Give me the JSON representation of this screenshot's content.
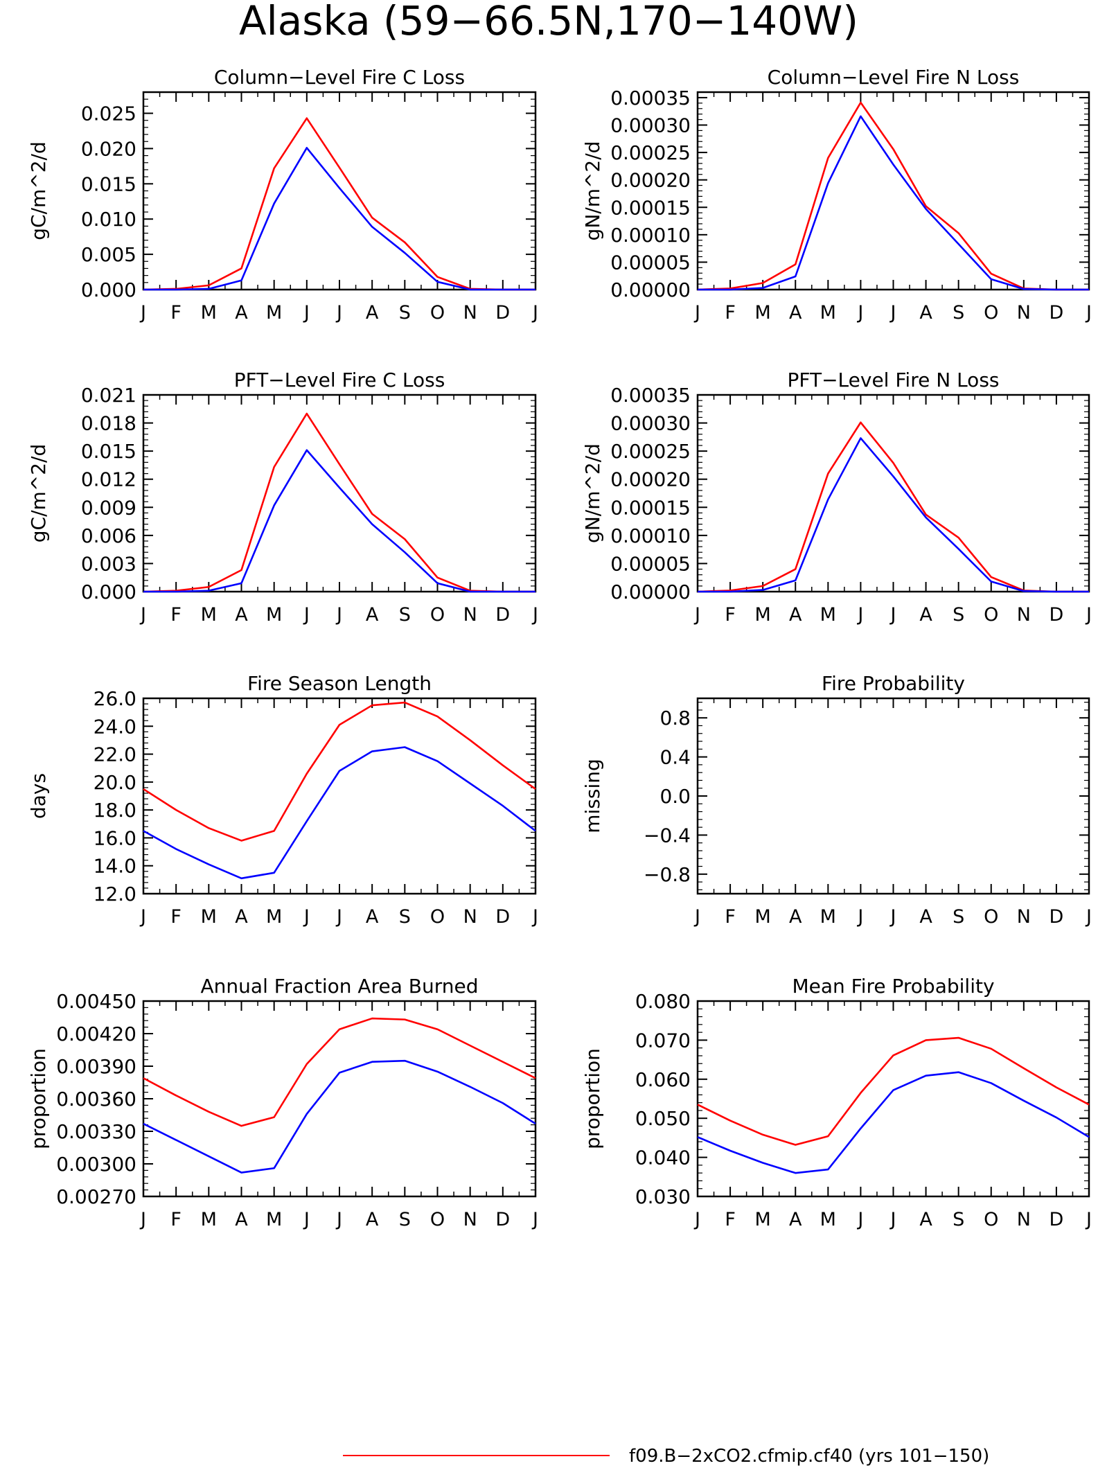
{
  "figure": {
    "title": "Alaska (59−66.5N,170−140W)",
    "legend": {
      "label": "f09.B−2xCO2.cfmip.cf40 (yrs 101−150)",
      "color": "#ff0000"
    }
  },
  "months": [
    "J",
    "F",
    "M",
    "A",
    "M",
    "J",
    "J",
    "A",
    "S",
    "O",
    "N",
    "D",
    "J"
  ],
  "colors": {
    "series_a": "#ff0000",
    "series_b": "#0000ff"
  },
  "chart_data": [
    {
      "id": "col-c",
      "type": "line",
      "title": "Column−Level Fire C Loss",
      "ylabel": "gC/m^2/d",
      "ylim": [
        0,
        0.028
      ],
      "yticks": [
        "0.000",
        "0.005",
        "0.010",
        "0.015",
        "0.020",
        "0.025"
      ],
      "ytick_values": [
        0,
        0.005,
        0.01,
        0.015,
        0.02,
        0.025
      ],
      "series": [
        {
          "color": "#ff0000",
          "values": [
            0.0,
            0.0001,
            0.0006,
            0.003,
            0.0172,
            0.0243,
            0.0173,
            0.0102,
            0.0067,
            0.0018,
            0.0001,
            0.0,
            0.0
          ]
        },
        {
          "color": "#0000ff",
          "values": [
            0.0,
            0.0,
            0.0001,
            0.0013,
            0.0122,
            0.0201,
            0.0144,
            0.0089,
            0.0052,
            0.0011,
            0.0,
            0.0,
            0.0
          ]
        }
      ]
    },
    {
      "id": "col-n",
      "type": "line",
      "title": "Column−Level Fire N Loss",
      "ylabel": "gN/m^2/d",
      "ylim": [
        0,
        0.00036
      ],
      "yticks": [
        "0.00000",
        "0.00005",
        "0.00010",
        "0.00015",
        "0.00020",
        "0.00025",
        "0.00030",
        "0.00035"
      ],
      "ytick_values": [
        0,
        5e-05,
        0.0001,
        0.00015,
        0.0002,
        0.00025,
        0.0003,
        0.00035
      ],
      "series": [
        {
          "color": "#ff0000",
          "values": [
            0.0,
            2e-06,
            1.2e-05,
            4.6e-05,
            0.00024,
            0.000341,
            0.000256,
            0.000152,
            0.000103,
            2.9e-05,
            2e-06,
            0.0,
            0.0
          ]
        },
        {
          "color": "#0000ff",
          "values": [
            0.0,
            0.0,
            3e-06,
            2.4e-05,
            0.000194,
            0.000316,
            0.000228,
            0.000147,
            8.3e-05,
            1.9e-05,
            1e-06,
            0.0,
            0.0
          ]
        }
      ]
    },
    {
      "id": "pft-c",
      "type": "line",
      "title": "PFT−Level Fire C Loss",
      "ylabel": "gC/m^2/d",
      "ylim": [
        0,
        0.021
      ],
      "yticks": [
        "0.000",
        "0.003",
        "0.006",
        "0.009",
        "0.012",
        "0.015",
        "0.018",
        "0.021"
      ],
      "ytick_values": [
        0,
        0.003,
        0.006,
        0.009,
        0.012,
        0.015,
        0.018,
        0.021
      ],
      "series": [
        {
          "color": "#ff0000",
          "values": [
            0.0,
            0.0001,
            0.0005,
            0.0023,
            0.0133,
            0.019,
            0.0136,
            0.0083,
            0.0056,
            0.0015,
            0.0001,
            0.0,
            0.0
          ]
        },
        {
          "color": "#0000ff",
          "values": [
            0.0,
            0.0,
            0.0001,
            0.0009,
            0.0092,
            0.0151,
            0.0111,
            0.0072,
            0.0042,
            0.0009,
            0.0,
            0.0,
            0.0
          ]
        }
      ]
    },
    {
      "id": "pft-n",
      "type": "line",
      "title": "PFT−Level Fire N Loss",
      "ylabel": "gN/m^2/d",
      "ylim": [
        0,
        0.00035
      ],
      "yticks": [
        "0.00000",
        "0.00005",
        "0.00010",
        "0.00015",
        "0.00020",
        "0.00025",
        "0.00030",
        "0.00035"
      ],
      "ytick_values": [
        0,
        5e-05,
        0.0001,
        0.00015,
        0.0002,
        0.00025,
        0.0003,
        0.00035
      ],
      "series": [
        {
          "color": "#ff0000",
          "values": [
            0.0,
            2e-06,
            1e-05,
            4e-05,
            0.00021,
            0.000301,
            0.000229,
            0.000137,
            9.6e-05,
            2.6e-05,
            2e-06,
            0.0,
            0.0
          ]
        },
        {
          "color": "#0000ff",
          "values": [
            0.0,
            0.0,
            3e-06,
            2e-05,
            0.000164,
            0.000273,
            0.000205,
            0.000132,
            7.6e-05,
            1.8e-05,
            1e-06,
            0.0,
            0.0
          ]
        }
      ]
    },
    {
      "id": "season",
      "type": "line",
      "title": "Fire Season Length",
      "ylabel": "days",
      "ylim": [
        12,
        26
      ],
      "yticks": [
        "12.0",
        "14.0",
        "16.0",
        "18.0",
        "20.0",
        "22.0",
        "24.0",
        "26.0"
      ],
      "ytick_values": [
        12,
        14,
        16,
        18,
        20,
        22,
        24,
        26
      ],
      "series": [
        {
          "color": "#ff0000",
          "values": [
            19.5,
            18.0,
            16.7,
            15.8,
            16.5,
            20.6,
            24.1,
            25.5,
            25.7,
            24.7,
            23.0,
            21.2,
            19.5
          ]
        },
        {
          "color": "#0000ff",
          "values": [
            16.5,
            15.2,
            14.1,
            13.1,
            13.5,
            17.2,
            20.8,
            22.2,
            22.5,
            21.5,
            19.9,
            18.3,
            16.5
          ]
        }
      ]
    },
    {
      "id": "prob",
      "type": "line",
      "title": "Fire Probability",
      "ylabel": "missing",
      "ylim": [
        -1,
        1
      ],
      "yticks": [
        "−0.8",
        "−0.4",
        "0.0",
        "0.4",
        "0.8"
      ],
      "ytick_values": [
        -0.8,
        -0.4,
        0,
        0.4,
        0.8
      ],
      "series": []
    },
    {
      "id": "afab",
      "type": "line",
      "title": "Annual Fraction Area Burned",
      "ylabel": "proportion",
      "ylim": [
        0.0027,
        0.0045
      ],
      "yticks": [
        "0.00270",
        "0.00300",
        "0.00330",
        "0.00360",
        "0.00390",
        "0.00420",
        "0.00450"
      ],
      "ytick_values": [
        0.0027,
        0.003,
        0.0033,
        0.0036,
        0.0039,
        0.0042,
        0.0045
      ],
      "series": [
        {
          "color": "#ff0000",
          "values": [
            0.00379,
            0.00363,
            0.00348,
            0.00335,
            0.00343,
            0.00392,
            0.00424,
            0.00434,
            0.00433,
            0.00424,
            0.00409,
            0.00394,
            0.00379
          ]
        },
        {
          "color": "#0000ff",
          "values": [
            0.00337,
            0.00322,
            0.00307,
            0.00292,
            0.00296,
            0.00346,
            0.00384,
            0.00394,
            0.00395,
            0.00385,
            0.00371,
            0.00356,
            0.00337
          ]
        }
      ]
    },
    {
      "id": "mfp",
      "type": "line",
      "title": "Mean Fire Probability",
      "ylabel": "proportion",
      "ylim": [
        0.03,
        0.08
      ],
      "yticks": [
        "0.030",
        "0.040",
        "0.050",
        "0.060",
        "0.070",
        "0.080"
      ],
      "ytick_values": [
        0.03,
        0.04,
        0.05,
        0.06,
        0.07,
        0.08
      ],
      "series": [
        {
          "color": "#ff0000",
          "values": [
            0.0535,
            0.0494,
            0.0458,
            0.0432,
            0.0454,
            0.0565,
            0.0661,
            0.07,
            0.0706,
            0.0678,
            0.0628,
            0.0579,
            0.0535
          ]
        },
        {
          "color": "#0000ff",
          "values": [
            0.0452,
            0.0417,
            0.0386,
            0.036,
            0.0369,
            0.0474,
            0.0572,
            0.0609,
            0.0618,
            0.059,
            0.0545,
            0.0502,
            0.0452
          ]
        }
      ]
    }
  ]
}
